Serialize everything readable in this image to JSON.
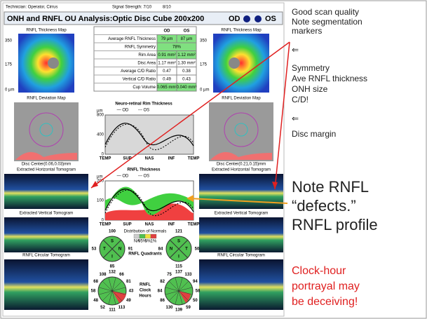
{
  "header": {
    "technician": "Technician: Operator, Cirrus",
    "signal_label": "Signal Strength: 7/10",
    "signal_os": "8/10",
    "title": "ONH and RNFL OU Analysis:Optic Disc Cube 200x200",
    "od": "OD",
    "os": "OS"
  },
  "panels": {
    "thickness_map": "RNFL Thickness Map",
    "scale": [
      "350",
      "175",
      "0 µm"
    ],
    "deviation_map": "RNFL Deviation Map",
    "disc_center_od": "Disc Center(0.06,0.03)mm",
    "disc_center_os": "Disc Center(0.21,0.15)mm",
    "horizontal": "Extracted Horizontal Tomogram",
    "vertical": "Extracted Vertical Tomogram",
    "circular": "RNFL Circular Tomogram"
  },
  "table": {
    "header": [
      "OD",
      "OS"
    ],
    "rows": [
      [
        "Average RNFL Thickness",
        "79 µm",
        "87 µm"
      ],
      [
        "RNFL Symmetry",
        "78%"
      ],
      [
        "Rim Area",
        "0.91 mm²",
        "1.12 mm²"
      ],
      [
        "Disc Area",
        "1.17 mm²",
        "1.30 mm²"
      ],
      [
        "Average C/D Ratio",
        "0.47",
        "0.38"
      ],
      [
        "Vertical C/D Ratio",
        "0.49",
        "0.43"
      ],
      [
        "Cup Volume",
        "0.065 mm³",
        "0.040 mm³"
      ]
    ]
  },
  "rim_chart": {
    "title": "Neuro-retinal Rim Thickness",
    "legend": [
      "— OD",
      "--- OS"
    ],
    "unit": "µm",
    "yticks": [
      "800",
      "400",
      "0"
    ],
    "xlabels": [
      "TEMP",
      "SUP",
      "NAS",
      "INF",
      "TEMP"
    ]
  },
  "rnfl_chart": {
    "title": "RNFL Thickness",
    "legend": [
      "— OD",
      "--- OS"
    ],
    "unit": "µm",
    "yticks": [
      "200",
      "100",
      "0"
    ],
    "xlabels": [
      "TEMP",
      "SUP",
      "NAS",
      "INF",
      "TEMP"
    ]
  },
  "quadrants": {
    "label": "RNFL Quadrants",
    "legend_title": "Distribution of Normals",
    "legend": [
      "NA",
      "95%",
      "5%",
      "1%"
    ],
    "letters": [
      "S",
      "T",
      "N",
      "I"
    ],
    "od": [
      "100",
      "53",
      "91",
      "85"
    ],
    "os": [
      "121",
      "84",
      "50",
      "115"
    ]
  },
  "clock": {
    "label": [
      "RNFL",
      "Clock",
      "Hours"
    ],
    "od": [
      "132",
      "66",
      "81",
      "43",
      "49",
      "113",
      "111",
      "52",
      "48",
      "58",
      "68",
      "108"
    ],
    "os": [
      "137",
      "133",
      "94",
      "58",
      "50",
      "59",
      "139",
      "130",
      "86",
      "84",
      "82",
      "75"
    ]
  },
  "notes": {
    "top": [
      "Good scan quality",
      "Note segmentation",
      "markers"
    ],
    "arrow1": "⇐",
    "mid": [
      "Symmetry",
      "Ave RNFL thickness",
      "ONH size",
      "C/D!"
    ],
    "arrow2": "⇐",
    "disc": "Disc margin",
    "rnfl": [
      "Note RNFL",
      "“defects.”",
      "RNFL profile"
    ],
    "warning": [
      "Clock-hour",
      "portrayal may",
      "be deceiving!"
    ]
  }
}
